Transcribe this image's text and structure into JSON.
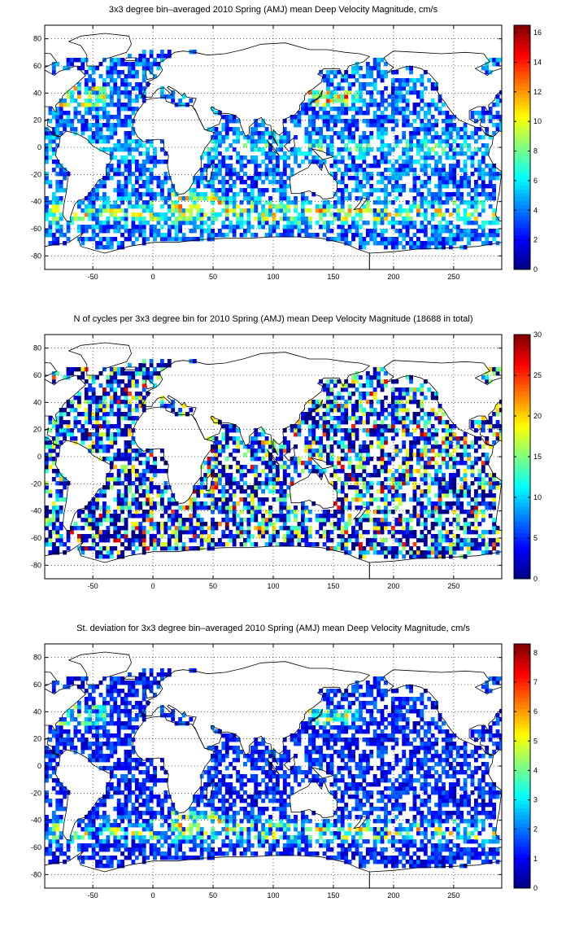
{
  "chart_data": [
    {
      "type": "heatmap",
      "title": "3x3 degree bin–averaged 2010 Spring (AMJ) mean Deep Velocity Magnitude, cm/s",
      "xlim": [
        -90,
        290
      ],
      "ylim": [
        -90,
        90
      ],
      "xticks": [
        -50,
        0,
        50,
        100,
        150,
        200,
        250
      ],
      "yticks": [
        80,
        60,
        40,
        20,
        0,
        -20,
        -40,
        -60,
        -80
      ],
      "colorbar": {
        "min": 0,
        "max": 16.5,
        "ticks": [
          0,
          2,
          4,
          6,
          8,
          10,
          12,
          14,
          16
        ]
      },
      "bin_size_deg": 3,
      "colormap": "jet",
      "grid": true,
      "field": "velocity"
    },
    {
      "type": "heatmap",
      "title": "N of cycles per 3x3 degree bin for 2010 Spring (AMJ) mean Deep Velocity Magnitude (18688 in total)",
      "xlim": [
        -90,
        290
      ],
      "ylim": [
        -90,
        90
      ],
      "xticks": [
        -50,
        0,
        50,
        100,
        150,
        200,
        250
      ],
      "yticks": [
        80,
        60,
        40,
        20,
        0,
        -20,
        -40,
        -60,
        -80
      ],
      "colorbar": {
        "min": 0,
        "max": 30,
        "ticks": [
          0,
          5,
          10,
          15,
          20,
          25,
          30
        ]
      },
      "bin_size_deg": 3,
      "colormap": "jet",
      "grid": true,
      "field": "count"
    },
    {
      "type": "heatmap",
      "title": "St. deviation for 3x3 degree bin–averaged 2010 Spring (AMJ) mean Deep Velocity Magnitude, cm/s",
      "xlim": [
        -90,
        290
      ],
      "ylim": [
        -90,
        90
      ],
      "xticks": [
        -50,
        0,
        50,
        100,
        150,
        200,
        250
      ],
      "yticks": [
        80,
        60,
        40,
        20,
        0,
        -20,
        -40,
        -60,
        -80
      ],
      "colorbar": {
        "min": 0,
        "max": 8.3,
        "ticks": [
          0,
          1,
          2,
          3,
          4,
          5,
          6,
          7,
          8
        ]
      },
      "bin_size_deg": 3,
      "colormap": "jet",
      "grid": true,
      "field": "stdev"
    }
  ]
}
